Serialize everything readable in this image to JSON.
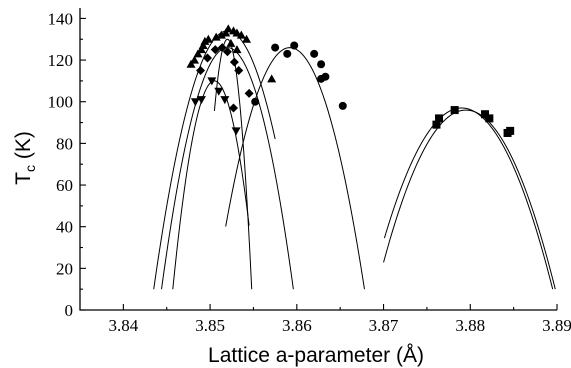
{
  "chart_data": {
    "type": "scatter",
    "title": "",
    "xlabel": "Lattice a-parameter (Å)",
    "ylabel_main": "T",
    "ylabel_sub": "c",
    "ylabel_unit": " (K)",
    "xlim": [
      3.835,
      3.89
    ],
    "ylim": [
      0,
      145
    ],
    "xticks": [
      3.84,
      3.85,
      3.86,
      3.87,
      3.88,
      3.89
    ],
    "xtick_labels": [
      "3.84",
      "3.85",
      "3.86",
      "3.87",
      "3.88",
      "3.89"
    ],
    "yticks": [
      0,
      20,
      40,
      60,
      80,
      100,
      120,
      140
    ],
    "ytick_labels": [
      "0",
      "20",
      "40",
      "60",
      "80",
      "100",
      "120",
      "140"
    ],
    "grid": false,
    "series": [
      {
        "marker": "triangle-up",
        "points": [
          [
            3.8478,
            118
          ],
          [
            3.8482,
            120
          ],
          [
            3.8486,
            123
          ],
          [
            3.849,
            125
          ],
          [
            3.8492,
            127
          ],
          [
            3.8494,
            129
          ],
          [
            3.8498,
            130
          ],
          [
            3.8507,
            131
          ],
          [
            3.8513,
            132
          ],
          [
            3.8518,
            133
          ],
          [
            3.8521,
            135
          ],
          [
            3.8527,
            134
          ],
          [
            3.8531,
            133
          ],
          [
            3.8536,
            132
          ],
          [
            3.8542,
            130
          ],
          [
            3.8524,
            128
          ],
          [
            3.8531,
            125
          ],
          [
            3.8571,
            111
          ]
        ]
      },
      {
        "marker": "diamond",
        "points": [
          [
            3.8489,
            115
          ],
          [
            3.8497,
            121
          ],
          [
            3.8506,
            125
          ],
          [
            3.8514,
            126
          ],
          [
            3.852,
            124
          ],
          [
            3.8528,
            119
          ],
          [
            3.8533,
            115
          ],
          [
            3.8527,
            97
          ],
          [
            3.8545,
            104
          ]
        ]
      },
      {
        "marker": "triangle-down",
        "points": [
          [
            3.8483,
            100
          ],
          [
            3.849,
            101
          ],
          [
            3.8502,
            110
          ],
          [
            3.851,
            105
          ],
          [
            3.8517,
            101
          ],
          [
            3.853,
            86
          ]
        ]
      },
      {
        "marker": "circle",
        "points": [
          [
            3.8552,
            100
          ],
          [
            3.8575,
            126
          ],
          [
            3.8589,
            123
          ],
          [
            3.8597,
            127
          ],
          [
            3.862,
            123
          ],
          [
            3.8628,
            118
          ],
          [
            3.8633,
            112
          ],
          [
            3.8628,
            111
          ],
          [
            3.8653,
            98
          ]
        ]
      },
      {
        "marker": "square",
        "points": [
          [
            3.8761,
            89
          ],
          [
            3.8764,
            92
          ],
          [
            3.8782,
            96
          ],
          [
            3.8817,
            94
          ],
          [
            3.8822,
            92
          ],
          [
            3.8843,
            85
          ],
          [
            3.8846,
            86
          ]
        ]
      }
    ],
    "fit_curves": [
      {
        "vertex": [
          3.852,
          134
        ],
        "x_range": [
          3.8435,
          3.8575
        ]
      },
      {
        "vertex": [
          3.852,
          126
        ],
        "x_range": [
          3.8444,
          3.8596
        ]
      },
      {
        "vertex": [
          3.8505,
          110
        ],
        "x_range": [
          3.8457,
          3.8545
        ]
      },
      {
        "vertex": [
          3.852,
          130
        ],
        "x_range": [
          3.8505,
          3.8548
        ]
      },
      {
        "vertex": [
          3.8592,
          126
        ],
        "x_range": [
          3.8518,
          3.8678
        ]
      },
      {
        "vertex": [
          3.879,
          97
        ],
        "x_range": [
          3.8701,
          3.8895
        ]
      },
      {
        "vertex": [
          3.8795,
          96
        ],
        "x_range": [
          3.87,
          3.8898
        ]
      }
    ]
  }
}
